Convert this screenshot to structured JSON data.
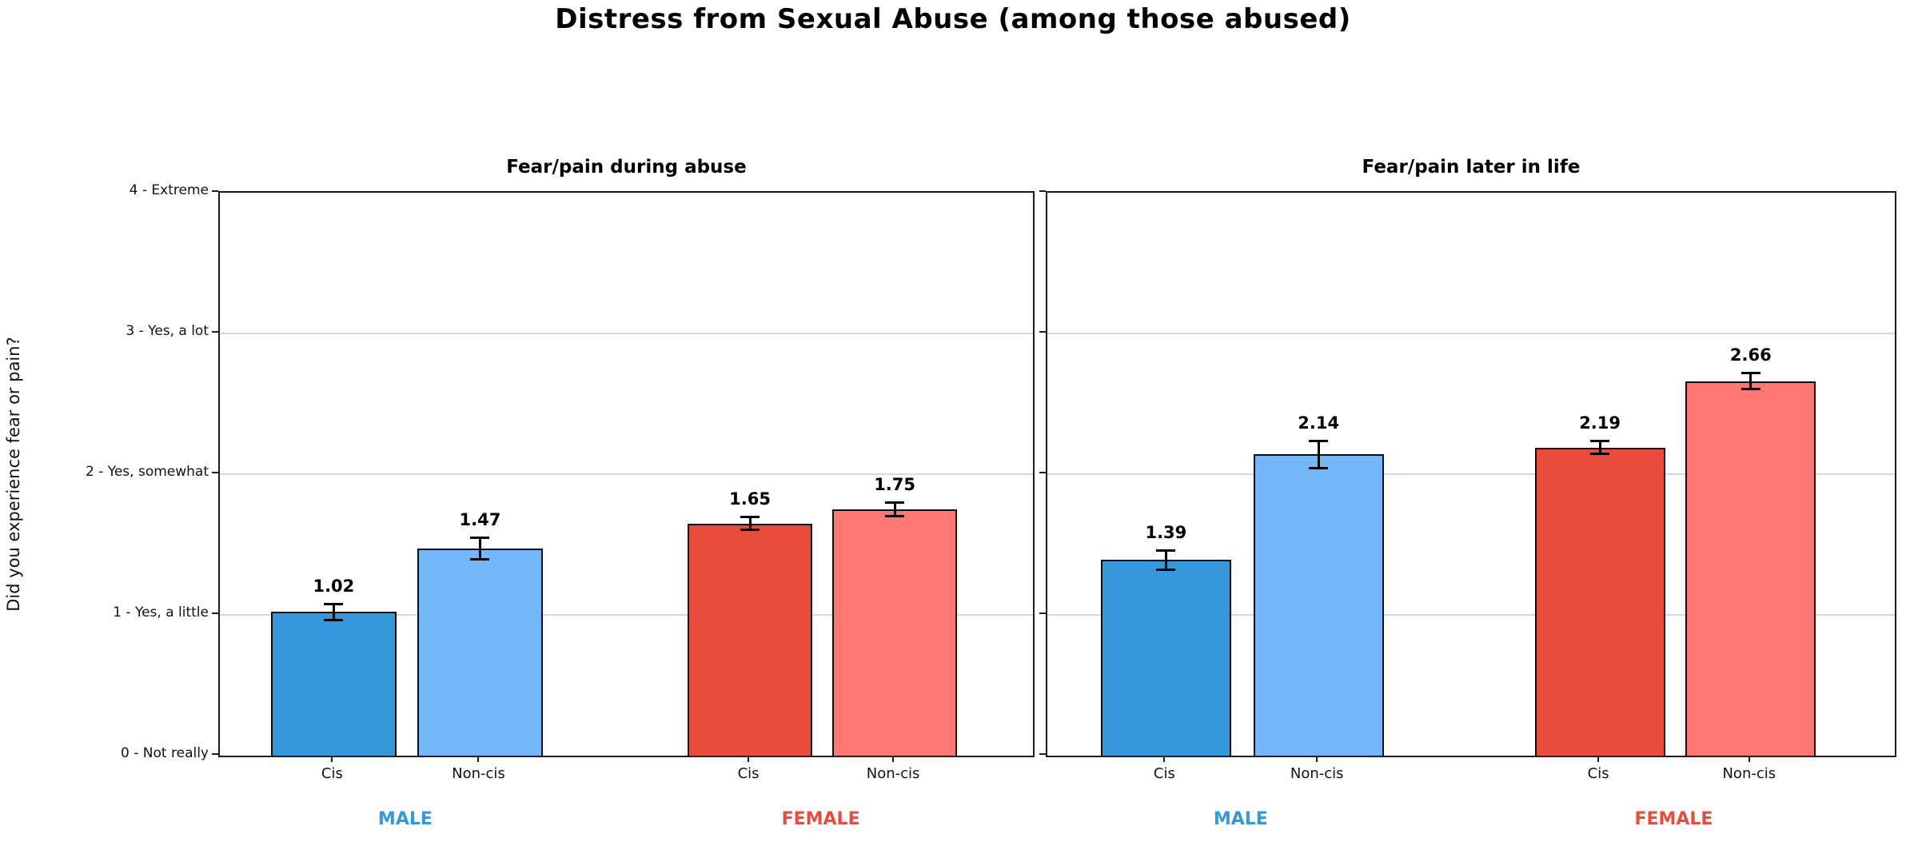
{
  "figure": {
    "title": "Distress from Sexual Abuse (among those abused)",
    "ylabel": "Did you experience fear or pain?"
  },
  "colors": {
    "male_cis_bar": "#3498db",
    "male_noncis_bar": "#74b6fa",
    "female_cis_bar": "#e74c3c",
    "female_noncis_bar": "#ff7774",
    "male_group_label": "#3498db",
    "female_group_label": "#e74c3c",
    "grid": "#d8d8d8",
    "spine": "#1c1c1c"
  },
  "y_axis": {
    "label": "Did you experience fear or pain?",
    "ylim": [
      0,
      4
    ],
    "ticks": [
      {
        "value": 0,
        "label": "0 - Not really"
      },
      {
        "value": 1,
        "label": "1 - Yes, a little"
      },
      {
        "value": 2,
        "label": "2 - Yes, somewhat"
      },
      {
        "value": 3,
        "label": "3 - Yes, a lot"
      },
      {
        "value": 4,
        "label": "4 - Extreme"
      }
    ]
  },
  "chart_data": [
    {
      "type": "bar",
      "title": "Fear/pain during abuse",
      "categories": [
        "Cis",
        "Non-cis",
        "Cis",
        "Non-cis"
      ],
      "group_of_bar": [
        "MALE",
        "MALE",
        "FEMALE",
        "FEMALE"
      ],
      "values": [
        1.02,
        1.47,
        1.65,
        1.75
      ],
      "value_labels": [
        "1.02",
        "1.47",
        "1.65",
        "1.75"
      ],
      "errors": [
        0.06,
        0.08,
        0.05,
        0.05
      ],
      "bar_colors": [
        "#3498db",
        "#74b6fa",
        "#e74c3c",
        "#ff7774"
      ],
      "ylim": [
        0,
        4
      ],
      "grid": true,
      "group_labels": [
        {
          "text": "MALE",
          "color": "#3498db"
        },
        {
          "text": "FEMALE",
          "color": "#e74c3c"
        }
      ]
    },
    {
      "type": "bar",
      "title": "Fear/pain later in life",
      "categories": [
        "Cis",
        "Non-cis",
        "Cis",
        "Non-cis"
      ],
      "group_of_bar": [
        "MALE",
        "MALE",
        "FEMALE",
        "FEMALE"
      ],
      "values": [
        1.39,
        2.14,
        2.19,
        2.66
      ],
      "value_labels": [
        "1.39",
        "2.14",
        "2.19",
        "2.66"
      ],
      "errors": [
        0.07,
        0.1,
        0.05,
        0.06
      ],
      "bar_colors": [
        "#3498db",
        "#74b6fa",
        "#e74c3c",
        "#ff7774"
      ],
      "ylim": [
        0,
        4
      ],
      "grid": true,
      "group_labels": [
        {
          "text": "MALE",
          "color": "#3498db"
        },
        {
          "text": "FEMALE",
          "color": "#e74c3c"
        }
      ]
    }
  ]
}
